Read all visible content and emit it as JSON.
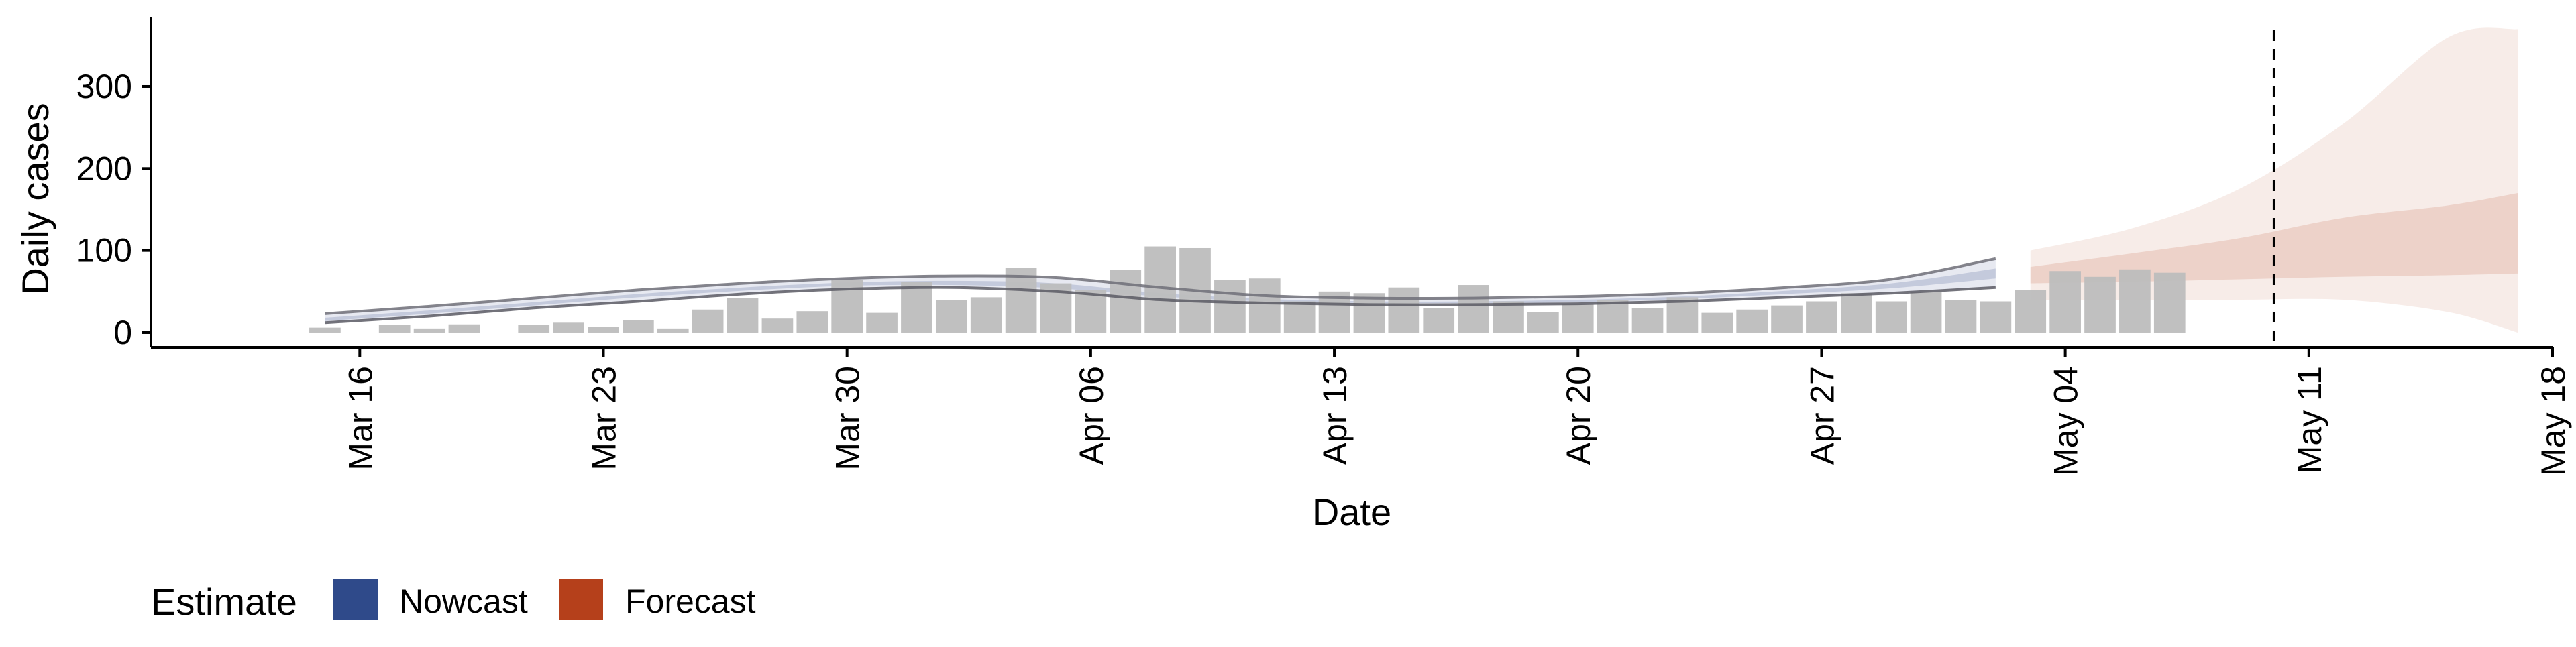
{
  "chart_data": {
    "type": "bar",
    "title": "",
    "xlabel": "Date",
    "ylabel": "Daily cases",
    "ylim": [
      -18,
      385
    ],
    "yticks": [
      0,
      100,
      200,
      300
    ],
    "xaxis": {
      "type": "date",
      "range": [
        "2020-03-10",
        "2020-05-18"
      ],
      "ticks": [
        {
          "date": "2020-03-16",
          "label": "Mar 16"
        },
        {
          "date": "2020-03-23",
          "label": "Mar 23"
        },
        {
          "date": "2020-03-30",
          "label": "Mar 30"
        },
        {
          "date": "2020-04-06",
          "label": "Apr 06"
        },
        {
          "date": "2020-04-13",
          "label": "Apr 13"
        },
        {
          "date": "2020-04-20",
          "label": "Apr 20"
        },
        {
          "date": "2020-04-27",
          "label": "Apr 27"
        },
        {
          "date": "2020-05-04",
          "label": "May 04"
        },
        {
          "date": "2020-05-11",
          "label": "May 11"
        },
        {
          "date": "2020-05-18",
          "label": "May 18"
        }
      ]
    },
    "bars": {
      "start_date": "2020-03-15",
      "values": [
        6,
        0,
        9,
        5,
        10,
        0,
        9,
        12,
        7,
        15,
        5,
        28,
        42,
        17,
        26,
        64,
        24,
        62,
        40,
        43,
        79,
        60,
        52,
        76,
        105,
        103,
        64,
        66,
        38,
        50,
        48,
        55,
        30,
        58,
        38,
        25,
        35,
        40,
        30,
        43,
        24,
        28,
        33,
        38,
        48,
        38,
        50,
        40,
        38,
        52,
        75,
        68,
        77,
        73
      ],
      "color": "#bdbdbd"
    },
    "vline": {
      "date": "2020-05-10",
      "style": "dashed"
    },
    "nowcast": {
      "dates": [
        "2020-03-15",
        "2020-03-18",
        "2020-03-21",
        "2020-03-24",
        "2020-03-27",
        "2020-03-30",
        "2020-04-02",
        "2020-04-05",
        "2020-04-08",
        "2020-04-11",
        "2020-04-14",
        "2020-04-17",
        "2020-04-20",
        "2020-04-23",
        "2020-04-26",
        "2020-04-29",
        "2020-05-02"
      ],
      "upper90": [
        23,
        32,
        42,
        52,
        60,
        66,
        69,
        67,
        55,
        45,
        42,
        42,
        44,
        48,
        55,
        65,
        90
      ],
      "upper50": [
        18,
        27,
        37,
        47,
        55,
        61,
        63,
        60,
        48,
        41,
        38,
        38,
        40,
        44,
        51,
        60,
        78
      ],
      "median": [
        16,
        25,
        35,
        45,
        53,
        59,
        61,
        57,
        46,
        39,
        37,
        37,
        38,
        42,
        49,
        57,
        72
      ],
      "lower50": [
        14,
        23,
        33,
        43,
        51,
        57,
        58,
        54,
        44,
        38,
        36,
        36,
        37,
        41,
        47,
        54,
        66
      ],
      "lower90": [
        12,
        20,
        30,
        38,
        47,
        53,
        55,
        50,
        40,
        36,
        34,
        34,
        35,
        38,
        43,
        48,
        55
      ],
      "color": "#3b4e8a"
    },
    "forecast": {
      "dates": [
        "2020-05-03",
        "2020-05-06",
        "2020-05-09",
        "2020-05-12",
        "2020-05-15",
        "2020-05-17"
      ],
      "upper90": [
        100,
        128,
        175,
        255,
        360,
        370
      ],
      "upper50": [
        80,
        97,
        115,
        140,
        155,
        170
      ],
      "lower50": [
        60,
        62,
        65,
        68,
        70,
        72
      ],
      "lower90": [
        40,
        40,
        40,
        40,
        25,
        0
      ],
      "color": "#b5401b"
    },
    "legend": {
      "position": "bottom-left",
      "title": "Estimate",
      "entries": [
        {
          "label": "Nowcast",
          "color": "#2f4a8a"
        },
        {
          "label": "Forecast",
          "color": "#b5401b"
        }
      ]
    },
    "grid": false
  }
}
